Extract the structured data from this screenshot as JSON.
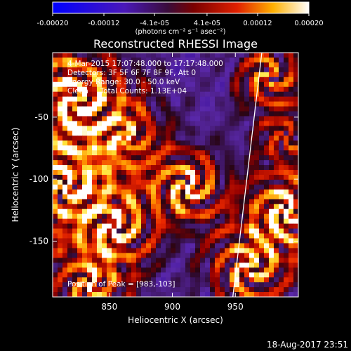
{
  "chart_data": {
    "type": "heatmap",
    "title": "Reconstructed RHESSI Image",
    "xlabel": "Heliocentric X (arcsec)",
    "ylabel": "Heliocentric Y (arcsec)",
    "xlim": [
      805,
      1000
    ],
    "ylim": [
      -195,
      2
    ],
    "x_ticks": [
      850,
      900,
      950
    ],
    "y_ticks": [
      -50,
      -100,
      -150
    ],
    "colorbar": {
      "min": -0.0002,
      "max": 0.0002,
      "ticks": [
        {
          "value": -0.0002,
          "label": "-0.00020"
        },
        {
          "value": -0.00012,
          "label": "-0.00012"
        },
        {
          "value": -4.1e-05,
          "label": "-4.1e-05"
        },
        {
          "value": 4.1e-05,
          "label": "4.1e-05"
        },
        {
          "value": 0.00012,
          "label": "0.00012"
        },
        {
          "value": 0.0002,
          "label": "0.00020"
        }
      ],
      "unit_label": "(photons cm⁻² s⁻¹ asec⁻²)"
    },
    "annotations": [
      "4-Mar-2015 17:07:48.000 to 17:17:48.000",
      "Detectors: 3F 5F 6F 7F 8F 9F, Att 0",
      "Energy Range: 30.0 - 50.0 keV",
      "Clean     Total Counts: 1.13E+04"
    ],
    "peak_label": "Position of Peak = [983,-103]",
    "peak": [
      983,
      -103
    ],
    "limb_line": [
      [
        948,
        -195
      ],
      [
        971,
        2
      ]
    ],
    "grid": false,
    "colors": {
      "low": "#0000ff",
      "mid_low": "#6a2fb0",
      "mid": "#8a0000",
      "high": "#ff2000",
      "peak": "#ffffff"
    }
  },
  "footer_timestamp": "18-Aug-2017 23:51"
}
